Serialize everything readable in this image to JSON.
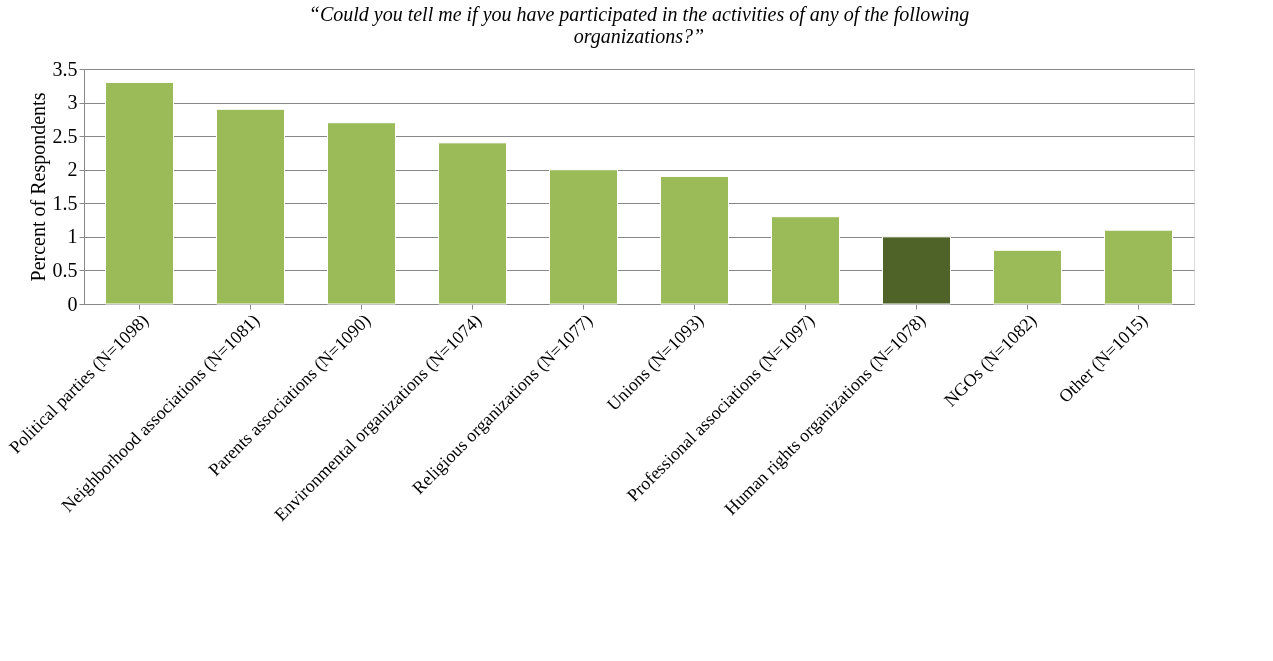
{
  "chart_data": {
    "type": "bar",
    "title": "“Could you tell me if you have participated in the activities of any of the following organizations?”",
    "ylabel": "Percent of Respondents",
    "categories": [
      "Political parties (N=1098)",
      "Neighborhood associations (N=1081)",
      "Parents associations (N=1090)",
      "Environmental organizations (N=1074)",
      "Religious organizations (N=1077)",
      "Unions (N=1093)",
      "Professional associations (N=1097)",
      "Human rights organizations (N=1078)",
      "NGOs (N=1082)",
      "Other (N=1015)"
    ],
    "values": [
      3.3,
      2.9,
      2.7,
      2.4,
      2.0,
      1.9,
      1.3,
      1.0,
      0.8,
      1.1
    ],
    "colors": [
      "#9bbb59",
      "#9bbb59",
      "#9bbb59",
      "#9bbb59",
      "#9bbb59",
      "#9bbb59",
      "#9bbb59",
      "#4f6228",
      "#9bbb59",
      "#9bbb59"
    ],
    "ylim": [
      0,
      3.5
    ],
    "yticks": [
      0,
      0.5,
      1,
      1.5,
      2,
      2.5,
      3,
      3.5
    ],
    "grid": "y"
  }
}
